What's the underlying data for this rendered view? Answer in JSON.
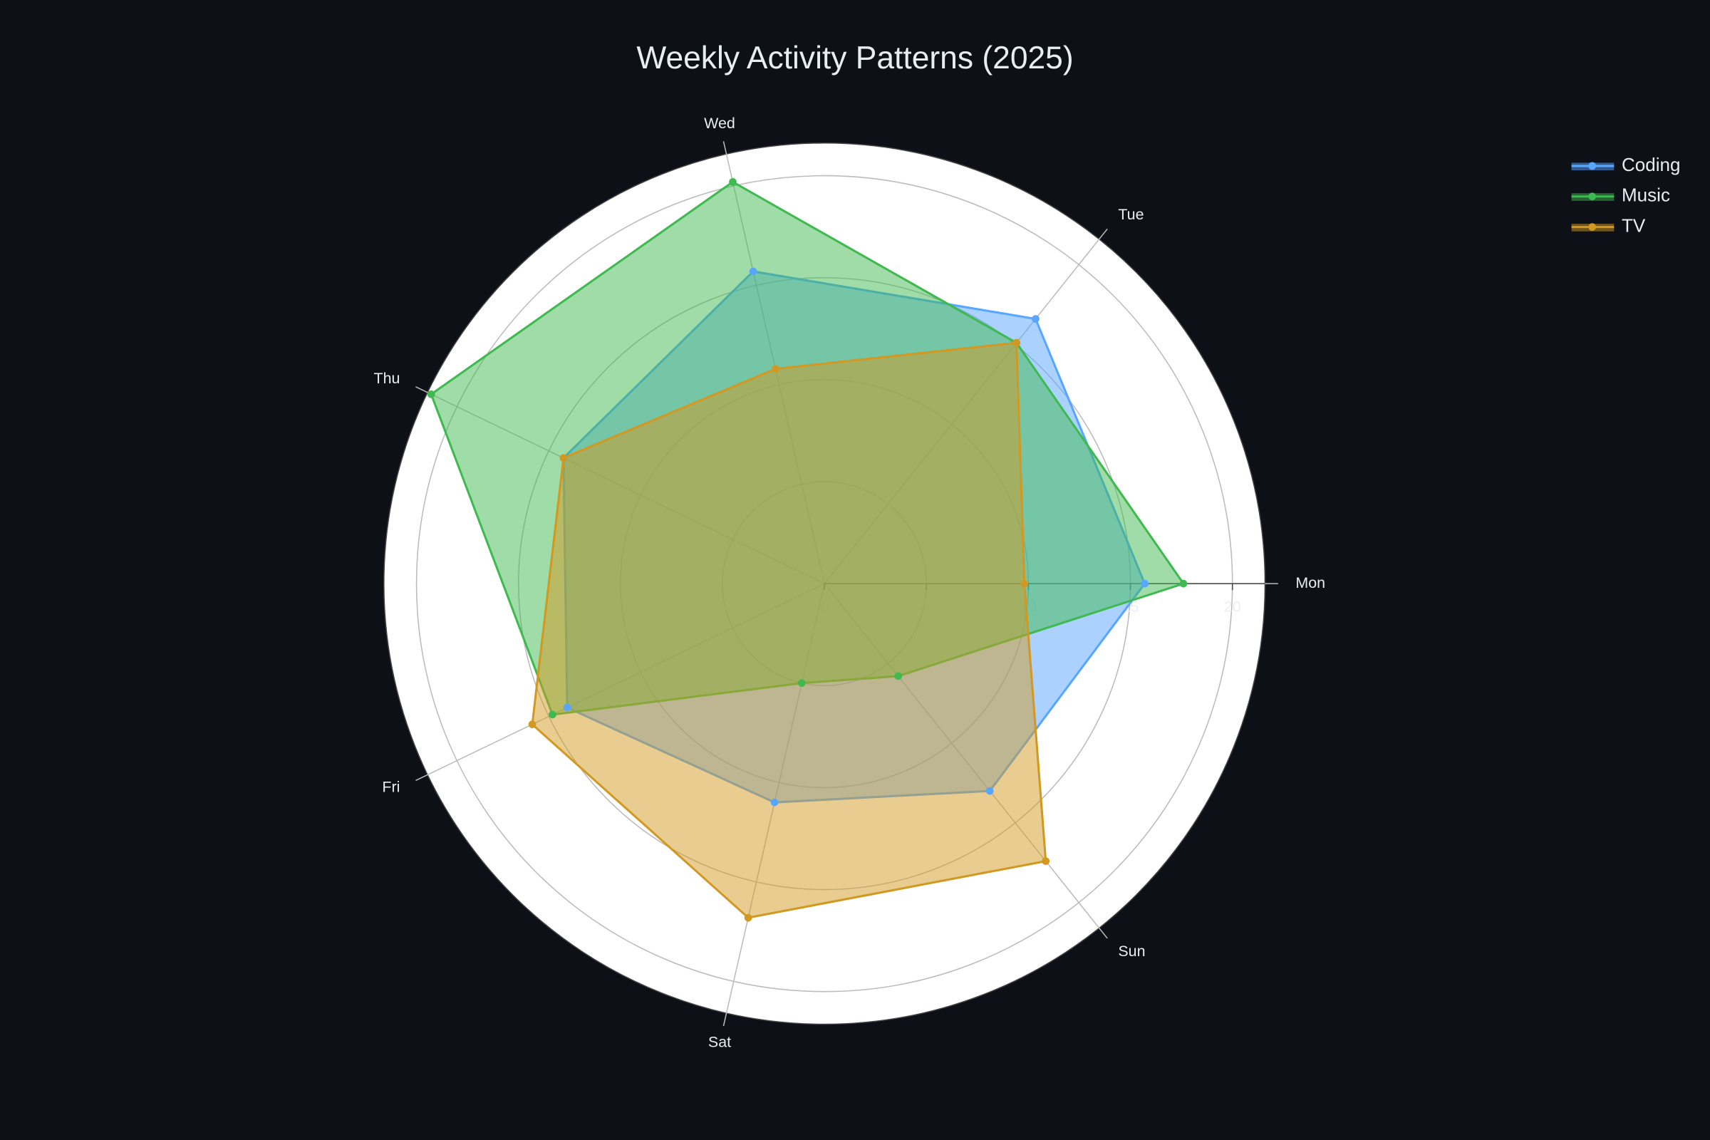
{
  "chart_data": {
    "type": "polar",
    "title": "Weekly Activity Patterns (2025)",
    "categories": [
      "Mon",
      "Tue",
      "Wed",
      "Thu",
      "Fri",
      "Sat",
      "Sun"
    ],
    "series": [
      {
        "name": "Coding",
        "color": "#58a6ff",
        "values": [
          15.7,
          16.6,
          15.7,
          14.2,
          14.0,
          11.0,
          13.0
        ]
      },
      {
        "name": "Music",
        "color": "#3fb950",
        "values": [
          17.6,
          15.1,
          20.2,
          21.4,
          14.8,
          5.0,
          5.8
        ]
      },
      {
        "name": "TV",
        "color": "#d29922",
        "values": [
          9.8,
          15.1,
          10.8,
          14.2,
          15.9,
          16.8,
          17.4
        ]
      }
    ],
    "rlim": [
      0,
      21.6
    ],
    "rticks": [
      0,
      5,
      10,
      15,
      20
    ],
    "grid": true,
    "legend": "upper right"
  }
}
